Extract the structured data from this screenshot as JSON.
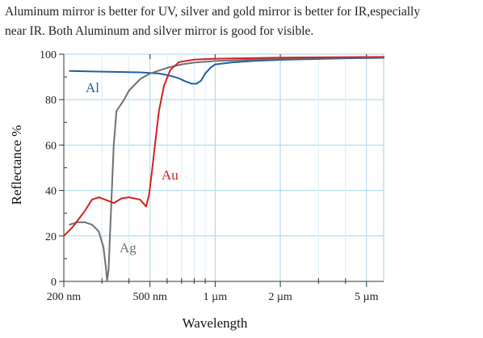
{
  "caption": {
    "line1": "Aluminum mirror is better for UV, silver and gold mirror is better for IR,especially",
    "line2": "near IR. Both Aluminum and silver mirror is good for visible."
  },
  "chart_data": {
    "type": "line",
    "xlabel": "Wavelength",
    "ylabel": "Reflectance %",
    "x_scale": "log",
    "x_range_nm": [
      200,
      6000
    ],
    "ylim": [
      0,
      100
    ],
    "grid": true,
    "x_ticks": [
      {
        "value": 200,
        "label": "200 nm"
      },
      {
        "value": 500,
        "label": "500 nm"
      },
      {
        "value": 1000,
        "label": "1 µm"
      },
      {
        "value": 2000,
        "label": "2 µm"
      },
      {
        "value": 5000,
        "label": "5 µm"
      }
    ],
    "x_minor_ticks": [
      300,
      400,
      600,
      700,
      800,
      900,
      3000,
      4000
    ],
    "y_ticks": [
      0,
      20,
      40,
      60,
      80,
      100
    ],
    "series": [
      {
        "name": "Al",
        "color": "#1f5fa0",
        "points": [
          [
            213,
            92.6
          ],
          [
            300,
            92.3
          ],
          [
            450,
            92.0
          ],
          [
            550,
            91.5
          ],
          [
            620,
            90.5
          ],
          [
            680,
            89.4
          ],
          [
            730,
            88.0
          ],
          [
            780,
            87.0
          ],
          [
            820,
            87.0
          ],
          [
            860,
            88.3
          ],
          [
            900,
            91.5
          ],
          [
            950,
            94.0
          ],
          [
            1000,
            95.5
          ],
          [
            1200,
            96.4
          ],
          [
            1500,
            97.0
          ],
          [
            2000,
            97.5
          ],
          [
            3000,
            97.9
          ],
          [
            4000,
            98.2
          ],
          [
            6000,
            98.4
          ]
        ]
      },
      {
        "name": "Ag",
        "color": "#707070",
        "points": [
          [
            213,
            25.0
          ],
          [
            230,
            26.0
          ],
          [
            250,
            26.0
          ],
          [
            270,
            25.0
          ],
          [
            290,
            22.0
          ],
          [
            305,
            15.0
          ],
          [
            312,
            7.0
          ],
          [
            317,
            0.5
          ],
          [
            322,
            5.0
          ],
          [
            330,
            30.0
          ],
          [
            340,
            60.0
          ],
          [
            350,
            75.0
          ],
          [
            380,
            80.0
          ],
          [
            400,
            84.0
          ],
          [
            450,
            89.0
          ],
          [
            500,
            91.5
          ],
          [
            600,
            94.0
          ],
          [
            700,
            95.5
          ],
          [
            800,
            96.3
          ],
          [
            1000,
            97.0
          ],
          [
            1500,
            97.6
          ],
          [
            2000,
            98.0
          ],
          [
            3000,
            98.3
          ],
          [
            6000,
            98.6
          ]
        ]
      },
      {
        "name": "Au",
        "color": "#d42020",
        "points": [
          [
            200,
            20.0
          ],
          [
            220,
            24.0
          ],
          [
            250,
            31.0
          ],
          [
            270,
            36.0
          ],
          [
            290,
            37.0
          ],
          [
            310,
            36.0
          ],
          [
            340,
            34.5
          ],
          [
            370,
            36.5
          ],
          [
            400,
            37.0
          ],
          [
            450,
            36.0
          ],
          [
            480,
            33.0
          ],
          [
            495,
            38.0
          ],
          [
            510,
            48.0
          ],
          [
            530,
            62.0
          ],
          [
            550,
            75.0
          ],
          [
            580,
            86.0
          ],
          [
            620,
            93.0
          ],
          [
            680,
            96.5
          ],
          [
            800,
            97.6
          ],
          [
            1000,
            98.0
          ],
          [
            2000,
            98.5
          ],
          [
            6000,
            98.8
          ]
        ]
      }
    ]
  }
}
